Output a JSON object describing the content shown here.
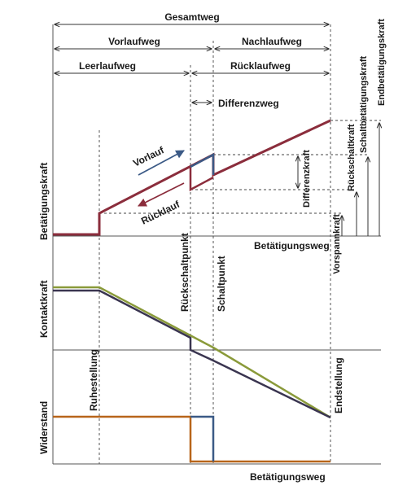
{
  "colors": {
    "force_curve": "#8b2d3c",
    "blue_curve": "#3b5a86",
    "green_curve": "#8a9a3a",
    "dark_curve": "#3a3550",
    "resistance_curve": "#b8651a",
    "axis": "#555555",
    "guide": "#444444"
  },
  "top_dimensions": {
    "total": "Gesamtweg",
    "forward": "Vorlaufweg",
    "overtravel": "Nachlaufweg",
    "idle": "Leerlaufweg",
    "return": "Rücklaufweg",
    "differential_travel": "Differenzweg"
  },
  "top_panel": {
    "y_label": "Betätigungskraft",
    "x_label": "Betätigungsweg",
    "forward_label": "Vorlauf",
    "return_label": "Rücklauf",
    "differential_force": "Differenzkraft"
  },
  "right_labels": {
    "preload": "Vorspannkraft",
    "release_force": "Rückschaltkraft",
    "switching_force": "Schaltbetätigungskraft",
    "end_force": "Endbetätigungskraft"
  },
  "middle_panel": {
    "y_label": "Kontaktkraft",
    "release_point": "Rückschaltpunkt",
    "switch_point": "Schaltpunkt"
  },
  "bottom_panel": {
    "y_label": "Widerstand",
    "x_label": "Betätigungsweg",
    "rest_position": "Ruhestellung",
    "end_position": "Endstellung"
  }
}
